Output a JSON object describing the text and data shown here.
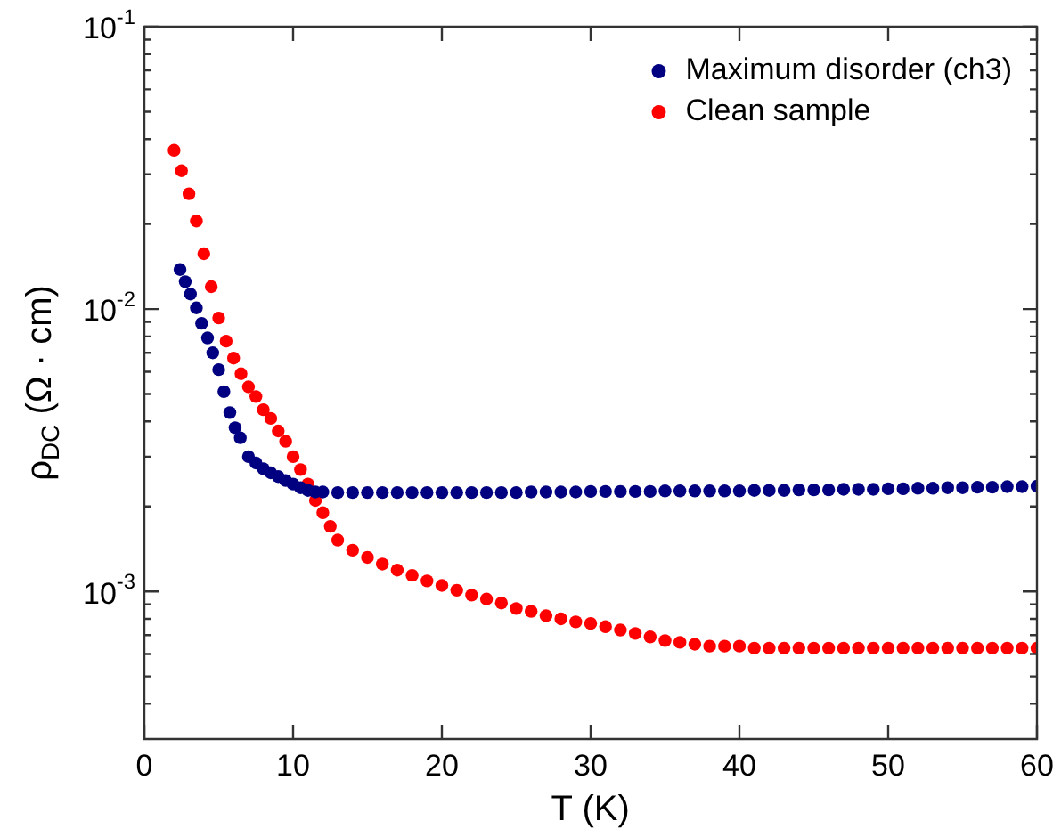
{
  "chart_data": {
    "type": "scatter",
    "xlabel": "T (K)",
    "ylabel": "ρ$_{DC}$ (Ω · cm)",
    "log": "y",
    "xlim": [
      0,
      60
    ],
    "xticks": [
      0,
      10,
      20,
      30,
      40,
      50,
      60
    ],
    "ylim": [
      0.0003,
      0.1
    ],
    "yticks": [
      {
        "value": 0.0004,
        "label": null
      },
      {
        "value": 0.0005,
        "label": null
      },
      {
        "value": 0.0006,
        "label": null
      },
      {
        "value": 0.0007,
        "label": null
      },
      {
        "value": 0.0008,
        "label": null
      },
      {
        "value": 0.0009,
        "label": null
      },
      {
        "value": 0.001,
        "label": "10$^{-3}$"
      },
      {
        "value": 0.002,
        "label": null
      },
      {
        "value": 0.003,
        "label": null
      },
      {
        "value": 0.004,
        "label": null
      },
      {
        "value": 0.005,
        "label": null
      },
      {
        "value": 0.006,
        "label": null
      },
      {
        "value": 0.007,
        "label": null
      },
      {
        "value": 0.008,
        "label": null
      },
      {
        "value": 0.009,
        "label": null
      },
      {
        "value": 0.01,
        "label": "10$^{-2}$"
      },
      {
        "value": 0.02,
        "label": null
      },
      {
        "value": 0.03,
        "label": null
      },
      {
        "value": 0.04,
        "label": null
      },
      {
        "value": 0.05,
        "label": null
      },
      {
        "value": 0.06,
        "label": null
      },
      {
        "value": 0.07,
        "label": null
      },
      {
        "value": 0.08,
        "label": null
      },
      {
        "value": 0.09,
        "label": null
      },
      {
        "value": 0.1,
        "label": "10$^{-1}$"
      }
    ],
    "legend": "top right",
    "marker": "circle",
    "grid": false,
    "series": [
      {
        "name": "Maximum disorder (ch3)",
        "color": "#000080",
        "x": [
          2.4,
          2.75,
          3.1,
          3.5,
          3.85,
          4.25,
          4.6,
          5,
          5.35,
          5.75,
          6.1,
          6.45,
          7,
          7.5,
          8,
          8.5,
          9,
          9.5,
          10,
          10.5,
          11,
          11.5,
          12,
          13,
          14,
          15,
          16,
          17,
          18,
          19,
          20,
          21,
          22,
          23,
          24,
          25,
          26,
          27,
          28,
          29,
          30,
          31,
          32,
          33,
          34,
          35,
          36,
          37,
          38,
          39,
          40,
          41,
          42,
          43,
          44,
          45,
          46,
          47,
          48,
          49,
          50,
          51,
          52,
          53,
          54,
          55,
          56,
          57,
          58,
          59,
          60
        ],
        "values": [
          0.0138,
          0.0125,
          0.0113,
          0.0101,
          0.0089,
          0.0079,
          0.007,
          0.0061,
          0.0051,
          0.0043,
          0.0038,
          0.0035,
          0.003,
          0.00285,
          0.00272,
          0.00263,
          0.00255,
          0.00247,
          0.0024,
          0.00233,
          0.00228,
          0.00225,
          0.00225,
          0.00224,
          0.00224,
          0.00224,
          0.00224,
          0.00224,
          0.00224,
          0.00224,
          0.00224,
          0.00224,
          0.00224,
          0.00224,
          0.00224,
          0.00224,
          0.00225,
          0.00225,
          0.00225,
          0.00225,
          0.00226,
          0.00226,
          0.00226,
          0.00226,
          0.00226,
          0.00227,
          0.00227,
          0.00227,
          0.00227,
          0.00227,
          0.00227,
          0.00228,
          0.00228,
          0.00228,
          0.00229,
          0.00229,
          0.00229,
          0.0023,
          0.0023,
          0.0023,
          0.00231,
          0.00231,
          0.00232,
          0.00232,
          0.00233,
          0.00233,
          0.00234,
          0.00234,
          0.00235,
          0.00235,
          0.00236
        ]
      },
      {
        "name": "Clean sample",
        "color": "#ff0000",
        "x": [
          2,
          2.5,
          3,
          3.5,
          4,
          4.5,
          5,
          5.5,
          6,
          6.5,
          7,
          7.5,
          8,
          8.5,
          9,
          9.5,
          10,
          10.5,
          11,
          11.5,
          12,
          12.5,
          13,
          14,
          15,
          16,
          17,
          18,
          19,
          20,
          21,
          22,
          23,
          24,
          25,
          26,
          27,
          28,
          29,
          30,
          31,
          32,
          33,
          34,
          35,
          36,
          37,
          38,
          39,
          40,
          41,
          42,
          43,
          44,
          45,
          46,
          47,
          48,
          49,
          50,
          51,
          52,
          53,
          54,
          55,
          56,
          57,
          58,
          59,
          60
        ],
        "values": [
          0.0365,
          0.0309,
          0.0256,
          0.0205,
          0.0157,
          0.012,
          0.0093,
          0.0077,
          0.0067,
          0.0059,
          0.0053,
          0.0049,
          0.0044,
          0.0041,
          0.0037,
          0.0034,
          0.003,
          0.0027,
          0.0024,
          0.0021,
          0.0019,
          0.0017,
          0.00152,
          0.0014,
          0.00132,
          0.00125,
          0.00119,
          0.00114,
          0.00109,
          0.00105,
          0.00101,
          0.00097,
          0.00094,
          0.00091,
          0.00087,
          0.00085,
          0.00082,
          0.0008,
          0.00078,
          0.00077,
          0.00075,
          0.00073,
          0.00071,
          0.00069,
          0.00067,
          0.00066,
          0.00065,
          0.00064,
          0.00064,
          0.00064,
          0.00063,
          0.00063,
          0.00063,
          0.00063,
          0.00063,
          0.00063,
          0.00063,
          0.00063,
          0.00063,
          0.00063,
          0.00063,
          0.00063,
          0.00063,
          0.00063,
          0.00063,
          0.00063,
          0.00063,
          0.00063,
          0.00063,
          0.00063
        ]
      }
    ]
  }
}
